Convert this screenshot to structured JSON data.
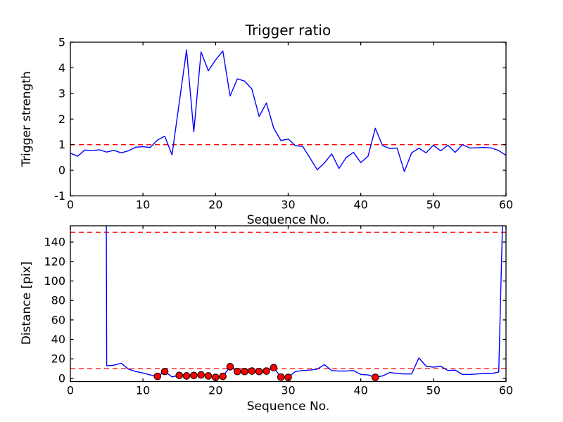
{
  "figure": {
    "background": "#ffffff",
    "line_color": "#0000ff",
    "threshold_color": "#ff0000",
    "marker_face_color": "#ff0000",
    "marker_edge_color": "#000000",
    "axis_color": "#000000"
  },
  "chart_data": [
    {
      "type": "line",
      "title": "Trigger ratio",
      "xlabel": "Sequence No.",
      "ylabel": "Trigger strength",
      "xlim": [
        0,
        60
      ],
      "ylim": [
        -1,
        5
      ],
      "xticks": [
        0,
        10,
        20,
        30,
        40,
        50,
        60
      ],
      "yticks": [
        -1,
        0,
        1,
        2,
        3,
        4,
        5
      ],
      "grid": false,
      "legend": "none",
      "threshold_lines": [
        1.0
      ],
      "x": [
        0,
        1,
        2,
        3,
        4,
        5,
        6,
        7,
        8,
        9,
        10,
        11,
        12,
        13,
        14,
        15,
        16,
        17,
        18,
        19,
        20,
        21,
        22,
        23,
        24,
        25,
        26,
        27,
        28,
        29,
        30,
        31,
        32,
        33,
        34,
        35,
        36,
        37,
        38,
        39,
        40,
        41,
        42,
        43,
        44,
        45,
        46,
        47,
        48,
        49,
        50,
        51,
        52,
        53,
        54,
        55,
        56,
        57,
        58,
        59,
        60
      ],
      "values": [
        0.67,
        0.55,
        0.79,
        0.77,
        0.8,
        0.71,
        0.78,
        0.68,
        0.76,
        0.9,
        0.92,
        0.89,
        1.18,
        1.33,
        0.6,
        2.65,
        4.7,
        1.5,
        4.62,
        3.88,
        4.31,
        4.66,
        2.9,
        3.57,
        3.48,
        3.17,
        2.1,
        2.63,
        1.65,
        1.16,
        1.22,
        0.96,
        0.93,
        0.48,
        0.02,
        0.29,
        0.64,
        0.07,
        0.5,
        0.7,
        0.3,
        0.55,
        1.64,
        0.96,
        0.85,
        0.87,
        -0.05,
        0.68,
        0.86,
        0.68,
        0.98,
        0.76,
        0.98,
        0.7,
        1.0,
        0.87,
        0.88,
        0.89,
        0.87,
        0.77,
        0.58
      ]
    },
    {
      "type": "line+scatter",
      "title": "",
      "xlabel": "Sequence No.",
      "ylabel": "Distance [pix]",
      "xlim": [
        0,
        60
      ],
      "ylim": [
        -3.3,
        156.7
      ],
      "xticks": [
        0,
        10,
        20,
        30,
        40,
        50,
        60
      ],
      "yticks": [
        0,
        20,
        40,
        60,
        80,
        100,
        120,
        140
      ],
      "grid": false,
      "legend": "none",
      "threshold_lines": [
        10,
        150
      ],
      "x": [
        0,
        1,
        2,
        3,
        4,
        5,
        6,
        7,
        8,
        9,
        10,
        11,
        12,
        13,
        14,
        15,
        16,
        17,
        18,
        19,
        20,
        21,
        22,
        23,
        24,
        25,
        26,
        27,
        28,
        29,
        30,
        31,
        32,
        33,
        34,
        35,
        36,
        37,
        38,
        39,
        40,
        41,
        42,
        43,
        44,
        45,
        46,
        47,
        48,
        49,
        50,
        51,
        52,
        53,
        54,
        55,
        56,
        57,
        58,
        59,
        60
      ],
      "values": [
        3000,
        3000,
        3000,
        3000,
        3000,
        13,
        13.5,
        15.5,
        9.5,
        7,
        5.5,
        3.5,
        2,
        7,
        1.5,
        3,
        2.5,
        3,
        3.5,
        2.5,
        1,
        2,
        12,
        7,
        7,
        7.5,
        7,
        7.5,
        11,
        1.3,
        1,
        7,
        8,
        8.5,
        9.5,
        14,
        8,
        7.5,
        7.5,
        8,
        4,
        3.5,
        1,
        2.5,
        6,
        5,
        4.5,
        4.5,
        21,
        12.5,
        11.5,
        12.5,
        8,
        8.5,
        4,
        4,
        4.5,
        5,
        5,
        6.5,
        300
      ],
      "marker_x": [
        12,
        13,
        15,
        16,
        17,
        18,
        19,
        20,
        21,
        22,
        23,
        24,
        25,
        26,
        27,
        28,
        29,
        30,
        42
      ]
    }
  ]
}
